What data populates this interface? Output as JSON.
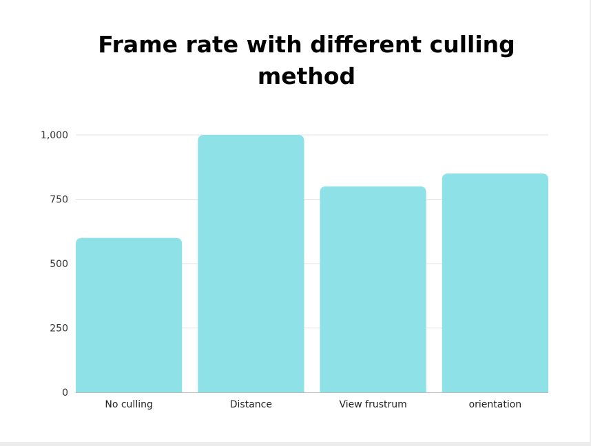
{
  "chart_data": {
    "type": "bar",
    "title_lines": [
      "Frame rate with different culling",
      "method"
    ],
    "categories": [
      "No culling",
      "Distance",
      "View frustrum",
      "orientation"
    ],
    "values": [
      600,
      1000,
      800,
      850
    ],
    "ylim": [
      0,
      1000
    ],
    "yticks": [
      0,
      250,
      500,
      750,
      1000
    ],
    "ytick_labels": [
      "0",
      "250",
      "500",
      "750",
      "1,000"
    ],
    "xlabel": "",
    "ylabel": "",
    "grid": true,
    "legend": "none",
    "bar_color": "#8ee2e7",
    "grid_color": "#e3e3e3",
    "axis_color": "#bdbdbd"
  }
}
